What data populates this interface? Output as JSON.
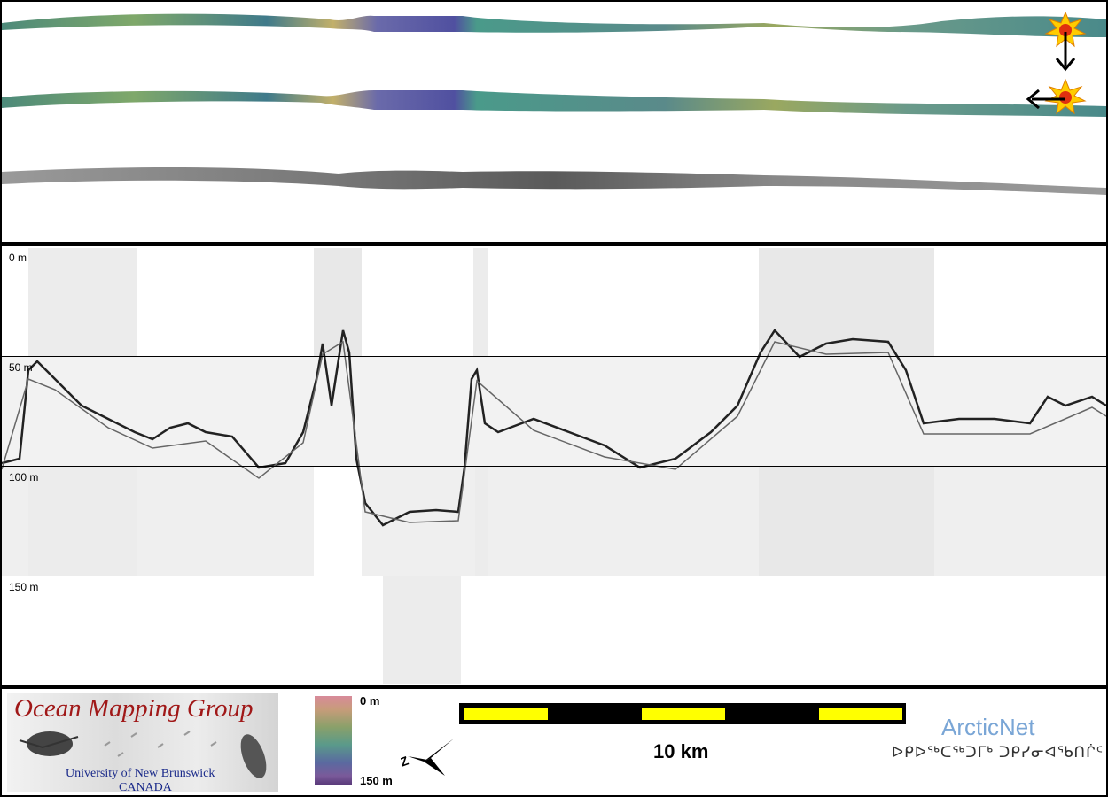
{
  "swath": {
    "tracks": [
      "colored-swath-upper",
      "colored-swath-middle",
      "backscatter-swath"
    ]
  },
  "profile": {
    "depth_labels": [
      "0 m",
      "50 m",
      "100 m",
      "150 m"
    ]
  },
  "legend": {
    "colorbar_top": "0 m",
    "colorbar_bottom": "150 m",
    "scale_label": "10 km",
    "north_arrow_label": "Z"
  },
  "logos": {
    "omg_title": "Ocean Mapping Group",
    "omg_university": "University of New Brunswick",
    "omg_country": "CANADA",
    "arcticnet_name": "ArcticNet",
    "arcticnet_syllabics": "ᐅᑭᐅᖅᑕᖅᑐᒥᒃ ᑐᑭᓯᓂᐊᖃᑎᒌᑦ"
  },
  "colors": {
    "border": "#000000",
    "scale_yellow": "#ffff00",
    "omg_red": "#a01818",
    "arcticnet_blue": "#7aa6d6"
  }
}
